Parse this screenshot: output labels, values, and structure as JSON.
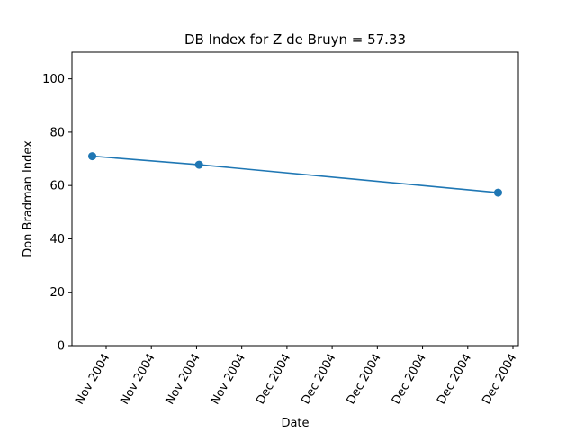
{
  "chart_data": {
    "type": "line",
    "title": "DB Index for Z de Bruyn = 57.33",
    "xlabel": "Date",
    "ylabel": "Don Bradman Index",
    "ylim": [
      0,
      110
    ],
    "y_ticks": [
      0,
      20,
      40,
      60,
      80,
      100
    ],
    "x_tick_labels": [
      "Nov 2004",
      "Nov 2004",
      "Nov 2004",
      "Nov 2004",
      "Dec 2004",
      "Dec 2004",
      "Dec 2004",
      "Dec 2004",
      "Dec 2004",
      "Dec 2004"
    ],
    "grid": false,
    "series": [
      {
        "color": "#1f77b4",
        "points": [
          {
            "x": "2004-11-17",
            "y": 71.0
          },
          {
            "x": "2004-11-22",
            "y": 67.8
          },
          {
            "x": "2004-12-06",
            "y": 57.33
          }
        ]
      }
    ]
  }
}
